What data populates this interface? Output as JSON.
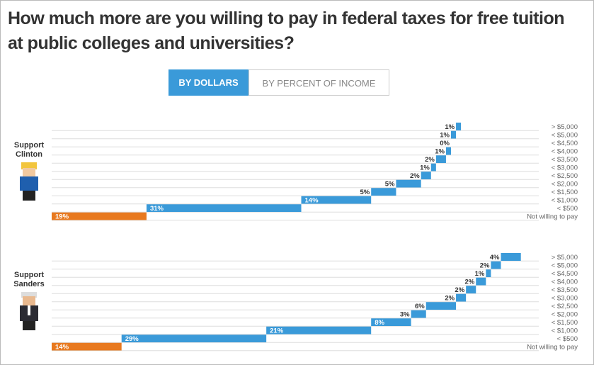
{
  "header": {
    "title": "How much more are you willing to pay in federal taxes for free tuition at public colleges and universities?"
  },
  "toggle": {
    "options": [
      "BY DOLLARS",
      "BY PERCENT OF INCOME"
    ]
  },
  "chart_data": [
    {
      "type": "waterfall",
      "title": "Support Clinton",
      "categories": [
        "Not willing to pay",
        "< $500",
        "< $1,000",
        "< $1,500",
        "< $2,000",
        "< $2,500",
        "< $3,000",
        "< $3,500",
        "< $4,000",
        "< $4,500",
        "< $5,000",
        "> $5,000"
      ],
      "values": [
        19,
        31,
        14,
        5,
        5,
        2,
        1,
        2,
        1,
        0,
        1,
        1
      ],
      "value_labels": [
        "19%",
        "31%",
        "14%",
        "5%",
        "5%",
        "2%",
        "1%",
        "2%",
        "1%",
        "0%",
        "1%",
        "1%"
      ],
      "colors": [
        "#e8791f",
        "#3a9ad9",
        "#3a9ad9",
        "#3a9ad9",
        "#3a9ad9",
        "#3a9ad9",
        "#3a9ad9",
        "#3a9ad9",
        "#3a9ad9",
        "#3a9ad9",
        "#3a9ad9",
        "#3a9ad9"
      ]
    },
    {
      "type": "waterfall",
      "title": "Support Sanders",
      "categories": [
        "Not willing to pay",
        "< $500",
        "< $1,000",
        "< $1,500",
        "< $2,000",
        "< $2,500",
        "< $3,000",
        "< $3,500",
        "< $4,000",
        "< $4,500",
        "< $5,000",
        "> $5,000"
      ],
      "values": [
        14,
        29,
        21,
        8,
        3,
        6,
        2,
        2,
        2,
        1,
        2,
        4
      ],
      "value_labels": [
        "14%",
        "29%",
        "21%",
        "8%",
        "3%",
        "6%",
        "2%",
        "2%",
        "2%",
        "1%",
        "2%",
        "4%"
      ],
      "colors": [
        "#e8791f",
        "#3a9ad9",
        "#3a9ad9",
        "#3a9ad9",
        "#3a9ad9",
        "#3a9ad9",
        "#3a9ad9",
        "#3a9ad9",
        "#3a9ad9",
        "#3a9ad9",
        "#3a9ad9",
        "#3a9ad9"
      ]
    }
  ]
}
